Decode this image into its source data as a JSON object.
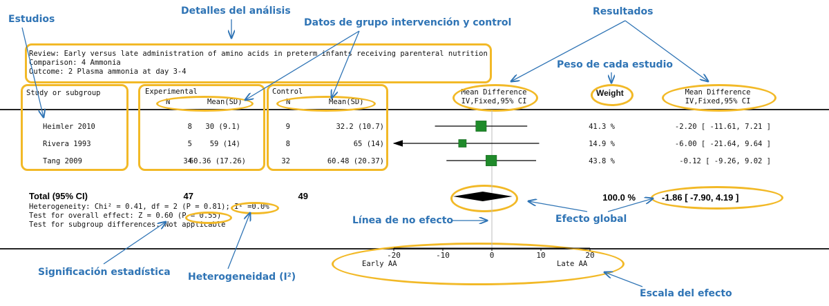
{
  "annotations": {
    "estudios": "Estudios",
    "detalles": "Detalles del análisis",
    "datos_grupo": "Datos de grupo intervención y control",
    "resultados": "Resultados",
    "peso": "Peso de cada estudio",
    "linea_no_efecto": "Línea de no efecto",
    "efecto_global": "Efecto global",
    "significacion": "Significación estadística",
    "heterogeneidad": "Heterogeneidad (I²)",
    "escala": "Escala del efecto"
  },
  "review": {
    "line1": "Review:  Early versus late administration of amino acids in preterm infants receiving parenteral nutrition",
    "line2": "Comparison:  4 Ammonia",
    "line3": "Outcome:  2 Plasma ammonia at day 3-4"
  },
  "headers": {
    "study": "Study or subgroup",
    "experimental": "Experimental",
    "control": "Control",
    "n": "N",
    "mean_sd": "Mean(SD)",
    "md_line1": "Mean Difference",
    "md_line2": "IV,Fixed,95% CI",
    "weight": "Weight",
    "md2_line1": "Mean Difference",
    "md2_line2": "IV,Fixed,95% CI"
  },
  "studies": [
    {
      "name": "Heimler 2010",
      "exp_n": "8",
      "exp_mean": "30 (9.1)",
      "ctl_n": "9",
      "ctl_mean": "32.2 (10.7)",
      "weight": "41.3 %",
      "ci_text": "-2.20 [ -11.61, 7.21 ]"
    },
    {
      "name": "Rivera 1993",
      "exp_n": "5",
      "exp_mean": "59 (14)",
      "ctl_n": "8",
      "ctl_mean": "65 (14)",
      "weight": "14.9 %",
      "ci_text": "-6.00 [ -21.64, 9.64 ]"
    },
    {
      "name": "Tang 2009",
      "exp_n": "34",
      "exp_mean": "60.36 (17.26)",
      "ctl_n": "32",
      "ctl_mean": "60.48 (20.37)",
      "weight": "43.8 %",
      "ci_text": "-0.12 [ -9.26, 9.02 ]"
    }
  ],
  "total": {
    "label": "Total (95% CI)",
    "exp_n": "47",
    "ctl_n": "49",
    "weight": "100.0 %",
    "ci_text": "-1.86 [ -7.90, 4.19 ]"
  },
  "stats": {
    "heterogeneity": "Heterogeneity: Chi² = 0.41, df = 2 (P = 0.81); I² =0.0%",
    "overall": "Test for overall effect: Z = 0.60 (P = 0.55)",
    "subgroup": "Test for subgroup differences: Not applicable"
  },
  "axis": {
    "left_label": "Early AA",
    "right_label": "Late AA"
  },
  "chart_data": {
    "type": "forest",
    "title": "Plasma ammonia at day 3-4",
    "xlabel": "Mean Difference IV,Fixed,95% CI",
    "xlim": [
      -25,
      22
    ],
    "ticks": [
      -20,
      -10,
      0,
      10,
      20
    ],
    "tick_labels": [
      "-20",
      "-10",
      "0",
      "10",
      "20"
    ],
    "studies": [
      {
        "name": "Heimler 2010",
        "mean_diff": -2.2,
        "ci_low": -11.61,
        "ci_high": 7.21,
        "weight": 41.3
      },
      {
        "name": "Rivera 1993",
        "mean_diff": -6.0,
        "ci_low": -21.64,
        "ci_high": 9.64,
        "weight": 14.9
      },
      {
        "name": "Tang 2009",
        "mean_diff": -0.12,
        "ci_low": -9.26,
        "ci_high": 9.02,
        "weight": 43.8
      }
    ],
    "pooled": {
      "mean_diff": -1.86,
      "ci_low": -7.9,
      "ci_high": 4.19,
      "weight": 100.0
    },
    "colors": {
      "marker": "#1f8a2a",
      "highlight": "#f2b927",
      "annotation": "#2f74b5"
    }
  }
}
